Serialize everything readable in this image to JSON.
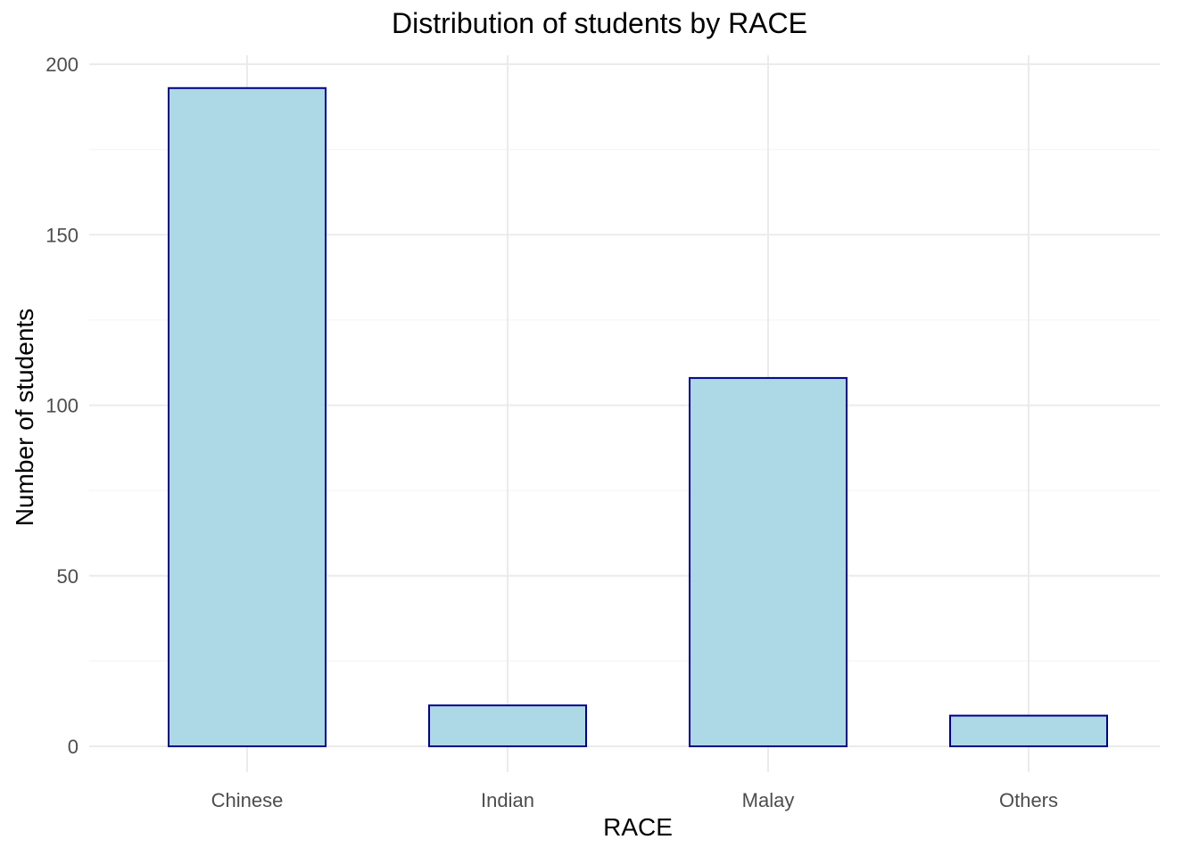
{
  "chart_data": {
    "type": "bar",
    "title": "Distribution of students by RACE",
    "xlabel": "RACE",
    "ylabel": "Number of students",
    "categories": [
      "Chinese",
      "Indian",
      "Malay",
      "Others"
    ],
    "values": [
      193,
      12,
      108,
      9
    ],
    "ylim": [
      0,
      200
    ],
    "yticks": [
      0,
      50,
      100,
      150,
      200
    ],
    "grid": true,
    "legend": "none",
    "colors": {
      "bar_fill": "#add8e6",
      "bar_stroke": "#00008b",
      "grid_major": "#ebebeb",
      "grid_minor": "#f5f5f5",
      "tick_text": "#4d4d4d"
    }
  }
}
